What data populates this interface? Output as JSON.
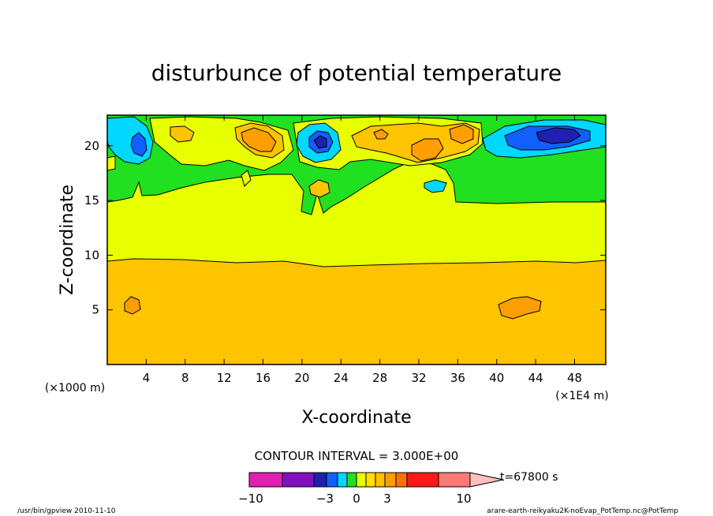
{
  "chart_data": {
    "type": "heatmap",
    "title": "disturbunce of potential temperature",
    "xlabel": "X-coordinate",
    "ylabel": "Z-coordinate",
    "x_unit_left": "(×1000 m)",
    "x_unit_right": "(×1E4 m)",
    "xlim": [
      0,
      51.2
    ],
    "ylim": [
      0,
      22.8
    ],
    "x_ticks": [
      "4",
      "8",
      "12",
      "16",
      "20",
      "24",
      "28",
      "32",
      "36",
      "40",
      "44",
      "48"
    ],
    "x_tick_values": [
      4,
      8,
      12,
      16,
      20,
      24,
      28,
      32,
      36,
      40,
      44,
      48
    ],
    "y_ticks": [
      "5",
      "10",
      "15",
      "20"
    ],
    "y_tick_values": [
      5,
      10,
      15,
      20
    ],
    "contour_interval": "CONTOUR INTERVAL = 3.000E+00",
    "time_label": "t=67800 s",
    "colorbar": {
      "labels": [
        "−10",
        "−3",
        "0",
        "3",
        "10"
      ],
      "colors": [
        "#e020b0",
        "#8010c0",
        "#2020b0",
        "#1060ff",
        "#00d8ff",
        "#20e020",
        "#e8ff00",
        "#ffe000",
        "#ffc400",
        "#ff9e00",
        "#ff7000",
        "#ff1818",
        "#ff7878",
        "#ffc0c0"
      ]
    },
    "regions": [
      {
        "name": "lower-layer",
        "color": "#ffc400"
      },
      {
        "name": "middle-layer",
        "color": "#e8ff00"
      },
      {
        "name": "upper-layer",
        "color": "#20e020"
      }
    ],
    "footer_left": "/usr/bin/gpview  2010-11-10",
    "footer_right": "arare-earth-reikyaku2K-noEvap_PotTemp.nc@PotTemp"
  }
}
